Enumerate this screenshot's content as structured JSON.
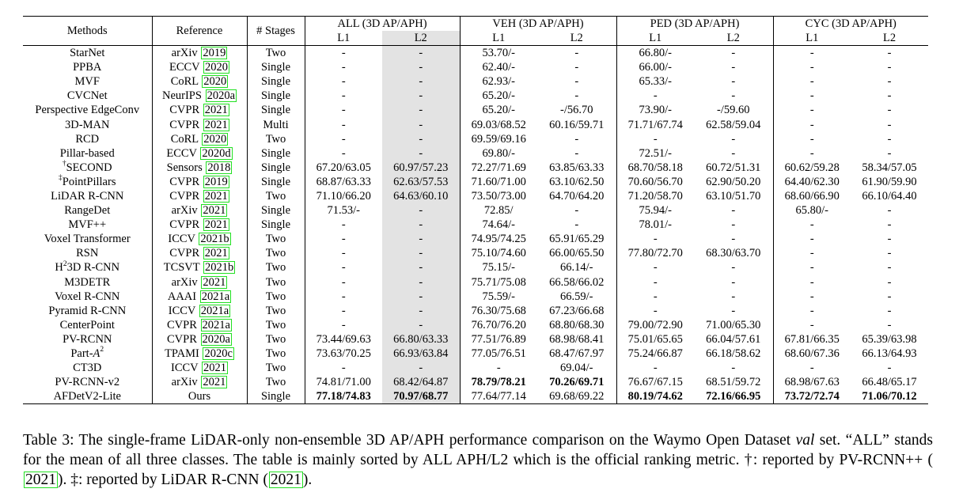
{
  "header": {
    "methods": "Methods",
    "reference": "Reference",
    "stages": "# Stages",
    "groups": [
      "ALL (3D AP/APH)",
      "VEH (3D AP/APH)",
      "PED (3D AP/APH)",
      "CYC (3D AP/APH)"
    ],
    "levels": [
      "L1",
      "L2"
    ]
  },
  "rows": [
    {
      "m": "StarNet",
      "v": "arXiv",
      "y": "2019",
      "s": "Two",
      "c": [
        "-",
        "-",
        "53.70/-",
        "-",
        "66.80/-",
        "-",
        "-",
        "-"
      ]
    },
    {
      "m": "PPBA",
      "v": "ECCV",
      "y": "2020",
      "s": "Single",
      "c": [
        "-",
        "-",
        "62.40/-",
        "-",
        "66.00/-",
        "-",
        "-",
        "-"
      ]
    },
    {
      "m": "MVF",
      "v": "CoRL",
      "y": "2020",
      "s": "Single",
      "c": [
        "-",
        "-",
        "62.93/-",
        "-",
        "65.33/-",
        "-",
        "-",
        "-"
      ]
    },
    {
      "m": "CVCNet",
      "v": "NeurIPS",
      "y": "2020a",
      "s": "Single",
      "c": [
        "-",
        "-",
        "65.20/-",
        "-",
        "-",
        "-",
        "-",
        "-"
      ]
    },
    {
      "m": "Perspective EdgeConv",
      "v": "CVPR",
      "y": "2021",
      "s": "Single",
      "c": [
        "-",
        "-",
        "65.20/-",
        "-/56.70",
        "73.90/-",
        "-/59.60",
        "-",
        "-"
      ]
    },
    {
      "m": "3D-MAN",
      "v": "CVPR",
      "y": "2021",
      "s": "Multi",
      "c": [
        "-",
        "-",
        "69.03/68.52",
        "60.16/59.71",
        "71.71/67.74",
        "62.58/59.04",
        "-",
        "-"
      ]
    },
    {
      "m": "RCD",
      "v": "CoRL",
      "y": "2020",
      "s": "Two",
      "c": [
        "-",
        "-",
        "69.59/69.16",
        "-",
        "-",
        "-",
        "-",
        "-"
      ]
    },
    {
      "m": "Pillar-based",
      "v": "ECCV",
      "y": "2020d",
      "s": "Single",
      "c": [
        "-",
        "-",
        "69.80/-",
        "-",
        "72.51/-",
        "-",
        "-",
        "-"
      ]
    },
    {
      "m": "SECOND",
      "mark": "†",
      "v": "Sensors",
      "y": "2018",
      "s": "Single",
      "c": [
        "67.20/63.05",
        "60.97/57.23",
        "72.27/71.69",
        "63.85/63.33",
        "68.70/58.18",
        "60.72/51.31",
        "60.62/59.28",
        "58.34/57.05"
      ]
    },
    {
      "m": "PointPillars",
      "mark": "‡",
      "v": "CVPR",
      "y": "2019",
      "s": "Single",
      "c": [
        "68.87/63.33",
        "62.63/57.53",
        "71.60/71.00",
        "63.10/62.50",
        "70.60/56.70",
        "62.90/50.20",
        "64.40/62.30",
        "61.90/59.90"
      ]
    },
    {
      "m": "LiDAR R-CNN",
      "v": "CVPR",
      "y": "2021",
      "s": "Two",
      "c": [
        "71.10/66.20",
        "64.63/60.10",
        "73.50/73.00",
        "64.70/64.20",
        "71.20/58.70",
        "63.10/51.70",
        "68.60/66.90",
        "66.10/64.40"
      ]
    },
    {
      "m": "RangeDet",
      "v": "arXiv",
      "y": "2021",
      "s": "Single",
      "c": [
        "71.53/-",
        "-",
        "72.85/",
        "-",
        "75.94/-",
        "-",
        "65.80/-",
        "-"
      ]
    },
    {
      "m": "MVF++",
      "v": "CVPR",
      "y": "2021",
      "s": "Single",
      "c": [
        "-",
        "-",
        "74.64/-",
        "-",
        "78.01/-",
        "-",
        "-",
        "-"
      ]
    },
    {
      "m": "Voxel Transformer",
      "v": "ICCV",
      "y": "2021b",
      "s": "Two",
      "c": [
        "-",
        "-",
        "74.95/74.25",
        "65.91/65.29",
        "-",
        "-",
        "-",
        "-"
      ]
    },
    {
      "m": "RSN",
      "v": "CVPR",
      "y": "2021",
      "s": "Two",
      "c": [
        "-",
        "-",
        "75.10/74.60",
        "66.00/65.50",
        "77.80/72.70",
        "68.30/63.70",
        "-",
        "-"
      ]
    },
    {
      "m": "3D R-CNN",
      "pre": "H",
      "sup": "2",
      "v": "TCSVT",
      "y": "2021b",
      "s": "Two",
      "c": [
        "-",
        "-",
        "75.15/-",
        "66.14/-",
        "-",
        "-",
        "-",
        "-"
      ]
    },
    {
      "m": "M3DETR",
      "v": "arXiv",
      "y": "2021",
      "s": "Two",
      "c": [
        "-",
        "-",
        "75.71/75.08",
        "66.58/66.02",
        "-",
        "-",
        "-",
        "-"
      ]
    },
    {
      "m": "Voxel R-CNN",
      "v": "AAAI",
      "y": "2021a",
      "s": "Two",
      "c": [
        "-",
        "-",
        "75.59/-",
        "66.59/-",
        "-",
        "-",
        "-",
        "-"
      ]
    },
    {
      "m": "Pyramid R-CNN",
      "v": "ICCV",
      "y": "2021a",
      "s": "Two",
      "c": [
        "-",
        "-",
        "76.30/75.68",
        "67.23/66.68",
        "-",
        "-",
        "-",
        "-"
      ]
    },
    {
      "m": "CenterPoint",
      "v": "CVPR",
      "y": "2021a",
      "s": "Two",
      "c": [
        "-",
        "-",
        "76.70/76.20",
        "68.80/68.30",
        "79.00/72.90",
        "71.00/65.30",
        "-",
        "-"
      ]
    },
    {
      "m": "PV-RCNN",
      "v": "CVPR",
      "y": "2020a",
      "s": "Two",
      "c": [
        "73.44/69.63",
        "66.80/63.33",
        "77.51/76.89",
        "68.98/68.41",
        "75.01/65.65",
        "66.04/57.61",
        "67.81/66.35",
        "65.39/63.98"
      ]
    },
    {
      "m": "Part-",
      "ital": "A",
      "sup": "2",
      "v": "TPAMI",
      "y": "2020c",
      "s": "Two",
      "c": [
        "73.63/70.25",
        "66.93/63.84",
        "77.05/76.51",
        "68.47/67.97",
        "75.24/66.87",
        "66.18/58.62",
        "68.60/67.36",
        "66.13/64.93"
      ]
    },
    {
      "m": "CT3D",
      "v": "ICCV",
      "y": "2021",
      "s": "Two",
      "c": [
        "-",
        "-",
        "-",
        "69.04/-",
        "-",
        "-",
        "-",
        "-"
      ]
    },
    {
      "m": "PV-RCNN-v2",
      "v": "arXiv",
      "y": "2021",
      "s": "Two",
      "c": [
        "74.81/71.00",
        "68.42/64.87",
        "78.79/78.21",
        "70.26/69.71",
        "76.67/67.15",
        "68.51/59.72",
        "68.98/67.63",
        "66.48/65.17"
      ],
      "bold": [
        2,
        3
      ]
    },
    {
      "m": "AFDetV2-Lite",
      "v": "Ours",
      "y": "",
      "s": "Single",
      "c": [
        "77.18/74.83",
        "70.97/68.77",
        "77.64/77.14",
        "69.68/69.22",
        "80.19/74.62",
        "72.16/66.95",
        "73.72/72.74",
        "71.06/70.12"
      ],
      "bold": [
        0,
        1,
        4,
        5,
        6,
        7
      ]
    }
  ],
  "caption": {
    "p1": "Table 3: The single-frame LiDAR-only non-ensemble 3D AP/APH performance comparison on the Waymo Open Dataset ",
    "val": "val",
    "p2": " set. “ALL” stands for the mean of all three classes. The table is mainly sorted by ALL APH/L2 which is the official ranking metric. †: reported by PV-RCNN++ (",
    "cite1": "2021",
    "p3": "). ‡: reported by LiDAR R-CNN (",
    "cite2": "2021",
    "p4": ")."
  },
  "colors": {
    "shade": "#e3e3e3",
    "cite_box": "#22e022"
  }
}
